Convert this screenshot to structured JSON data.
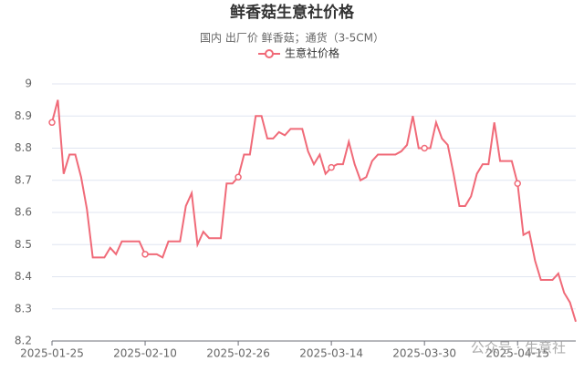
{
  "chart_data": {
    "type": "line",
    "title": "鲜香菇生意社价格",
    "subtitle": "国内 出厂价 鲜香菇；通货（3-5CM）",
    "watermark": "公众号 · 生意社",
    "categories": [
      "2025-01-25",
      null,
      null,
      null,
      null,
      null,
      null,
      null,
      null,
      null,
      null,
      null,
      null,
      null,
      null,
      null,
      "2025-02-10",
      null,
      null,
      null,
      null,
      null,
      null,
      null,
      null,
      null,
      null,
      null,
      null,
      null,
      null,
      null,
      "2025-02-26",
      null,
      null,
      null,
      null,
      null,
      null,
      null,
      null,
      null,
      null,
      null,
      null,
      null,
      null,
      null,
      "2025-03-14",
      null,
      null,
      null,
      null,
      null,
      null,
      null,
      null,
      null,
      null,
      null,
      null,
      null,
      null,
      null,
      "2025-03-30",
      null,
      null,
      null,
      null,
      null,
      null,
      null,
      null,
      null,
      null,
      null,
      null,
      null,
      null,
      null,
      "2025-04-15",
      null,
      null,
      null,
      null,
      null,
      null,
      null,
      null,
      null,
      null
    ],
    "series": [
      {
        "name": "生意社价格",
        "color": "#f06a78",
        "values": [
          8.88,
          8.95,
          8.72,
          8.78,
          8.78,
          8.71,
          8.61,
          8.46,
          8.46,
          8.46,
          8.49,
          8.47,
          8.51,
          8.51,
          8.51,
          8.51,
          8.47,
          8.47,
          8.47,
          8.46,
          8.51,
          8.51,
          8.51,
          8.62,
          8.66,
          8.5,
          8.54,
          8.52,
          8.52,
          8.52,
          8.69,
          8.69,
          8.71,
          8.78,
          8.78,
          8.9,
          8.9,
          8.83,
          8.83,
          8.85,
          8.84,
          8.86,
          8.86,
          8.86,
          8.79,
          8.75,
          8.78,
          8.72,
          8.74,
          8.75,
          8.75,
          8.82,
          8.75,
          8.7,
          8.71,
          8.76,
          8.78,
          8.78,
          8.78,
          8.78,
          8.79,
          8.81,
          8.9,
          8.8,
          8.8,
          8.8,
          8.88,
          8.83,
          8.81,
          8.72,
          8.62,
          8.62,
          8.65,
          8.72,
          8.75,
          8.75,
          8.88,
          8.76,
          8.76,
          8.76,
          8.69,
          8.53,
          8.54,
          8.45,
          8.39,
          8.39,
          8.39,
          8.41,
          8.35,
          8.32,
          8.26
        ]
      }
    ],
    "ylim": [
      8.2,
      9
    ],
    "yticks": [
      8.2,
      8.3,
      8.4,
      8.5,
      8.6,
      8.7,
      8.8,
      8.9,
      9
    ],
    "grid": true
  }
}
